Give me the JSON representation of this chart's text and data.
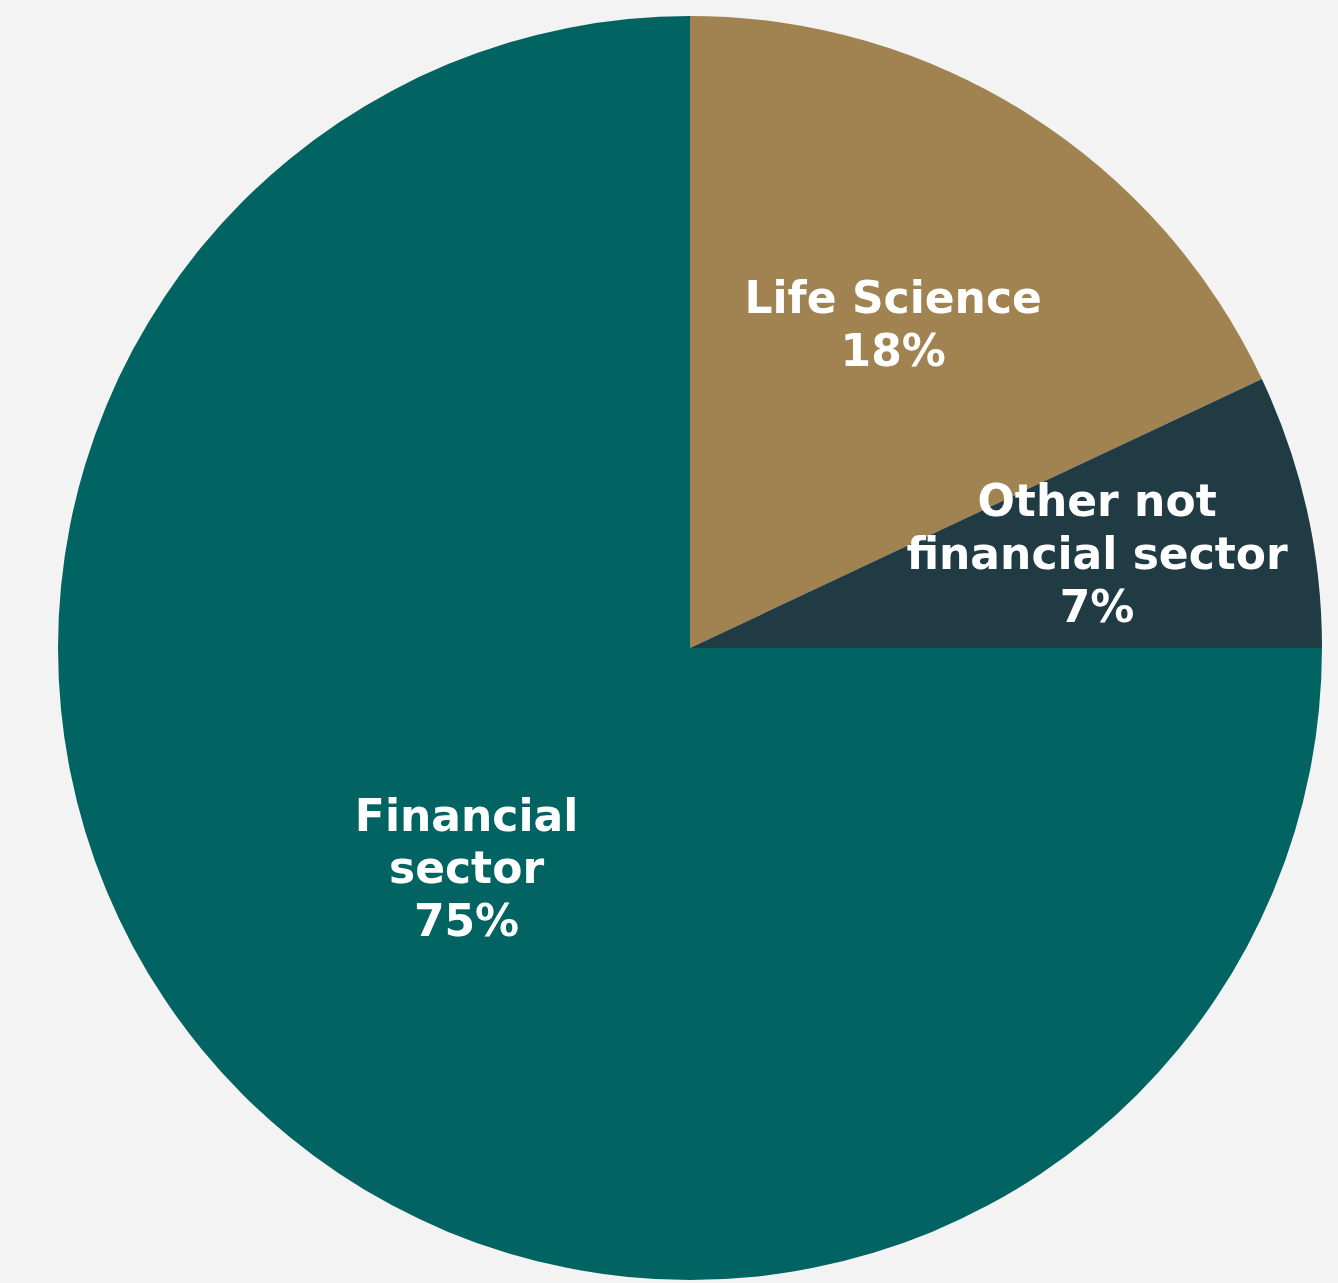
{
  "chart_data": {
    "type": "pie",
    "categories": [
      "Life Science",
      "Other not financial sector",
      "Financial sector"
    ],
    "values": [
      18,
      7,
      75
    ],
    "value_labels": [
      "18%",
      "7%",
      "75%"
    ],
    "colors": [
      "#a08350",
      "#213b45",
      "#026462"
    ]
  }
}
